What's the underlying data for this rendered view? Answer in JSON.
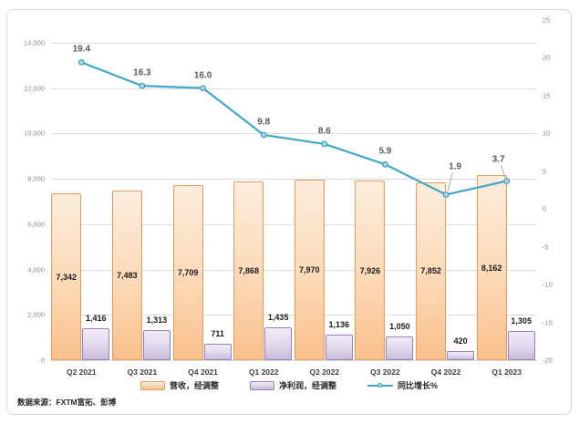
{
  "source_note": "数据来源：FXTM富拓、彭博",
  "colors": {
    "revenue_border": "#e99b57",
    "revenue_fill_light": "#fdeddd",
    "revenue_fill_dark": "#fac08c",
    "profit_border": "#997fb9",
    "profit_fill_light": "#f1ecf7",
    "profit_fill_dark": "#c9bbd9",
    "growth_line": "#41a7c5",
    "marker_fill": "#aedae8",
    "marker_stroke": "#3d9bb8",
    "grid": "#dcdcdc",
    "axis_text": "#8a8a8a",
    "leader": "#a6a6a6"
  },
  "chart_data": {
    "type": "combo",
    "categories": [
      "Q2 2021",
      "Q3 2021",
      "Q4 2021",
      "Q1 2022",
      "Q2 2022",
      "Q3 2022",
      "Q4 2022",
      "Q1 2023"
    ],
    "series": [
      {
        "name": "营收，经调整",
        "type": "bar",
        "palette": "orange",
        "axis": "left",
        "values": [
          7342,
          7483,
          7709,
          7868,
          7970,
          7926,
          7852,
          8162
        ],
        "label_position": "center"
      },
      {
        "name": "净利润，经调整",
        "type": "bar",
        "palette": "purple",
        "axis": "left",
        "values": [
          1416,
          1313,
          711,
          1435,
          1136,
          1050,
          420,
          1305
        ],
        "label_position": "above"
      },
      {
        "name": "同比增长%",
        "type": "line",
        "axis": "right",
        "values": [
          19.4,
          16.3,
          16.0,
          9.8,
          8.6,
          5.9,
          1.9,
          3.7
        ],
        "label_offsets": [
          [
            0,
            -14
          ],
          [
            0,
            -14
          ],
          [
            0,
            -14
          ],
          [
            0,
            -14
          ],
          [
            0,
            -14
          ],
          [
            0,
            -14
          ],
          [
            10,
            -31
          ],
          [
            -9,
            -24
          ]
        ],
        "leader_indices": [
          6,
          7
        ]
      }
    ],
    "left_axis": {
      "min": 0,
      "max": 15000,
      "ticks": [
        0,
        2000,
        4000,
        6000,
        8000,
        10000,
        12000,
        14000
      ]
    },
    "right_axis": {
      "min": -20,
      "max": 25,
      "ticks": [
        25,
        20,
        15,
        10,
        5,
        0,
        -5,
        -10,
        -15,
        -20
      ]
    },
    "grid": true,
    "legend_position": "bottom",
    "title": ""
  }
}
